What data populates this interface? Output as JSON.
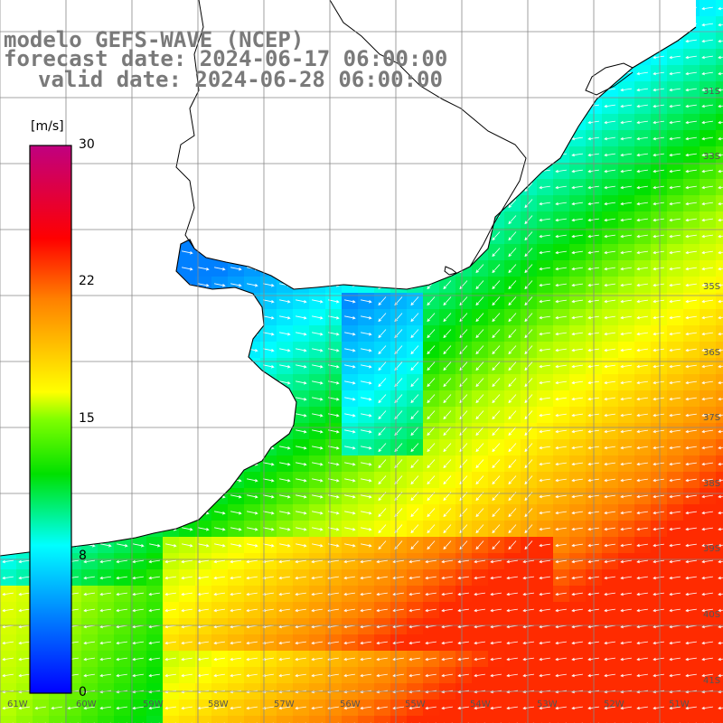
{
  "title": {
    "line1": "modelo GEFS-WAVE (NCEP)",
    "line2": "forecast date: 2024-06-17 06:00:00",
    "line3": "valid date: 2024-06-28 06:00:00"
  },
  "colorbar": {
    "unit": "[m/s]",
    "ticks": [
      "30",
      "22",
      "15",
      "8",
      "0"
    ],
    "tick_values": [
      30,
      22,
      15,
      8,
      0
    ],
    "range": [
      0,
      30
    ],
    "colors": [
      "#0000ff",
      "#00a0ff",
      "#00ffff",
      "#00ff00",
      "#ffff00",
      "#ff8000",
      "#ff0000",
      "#cc0080"
    ]
  },
  "grid": {
    "lat_labels": [
      "31S",
      "33S",
      "35S",
      "36S",
      "37S",
      "38S",
      "39S",
      "40S",
      "41S"
    ],
    "lon_labels": [
      "61W",
      "60W",
      "59W",
      "58W",
      "57W",
      "56W",
      "55W",
      "54W",
      "53W",
      "52W",
      "51W"
    ]
  },
  "field": {
    "variable": "wind speed with direction arrows",
    "land_color": "#ffffff",
    "coast_color": "#000000"
  }
}
